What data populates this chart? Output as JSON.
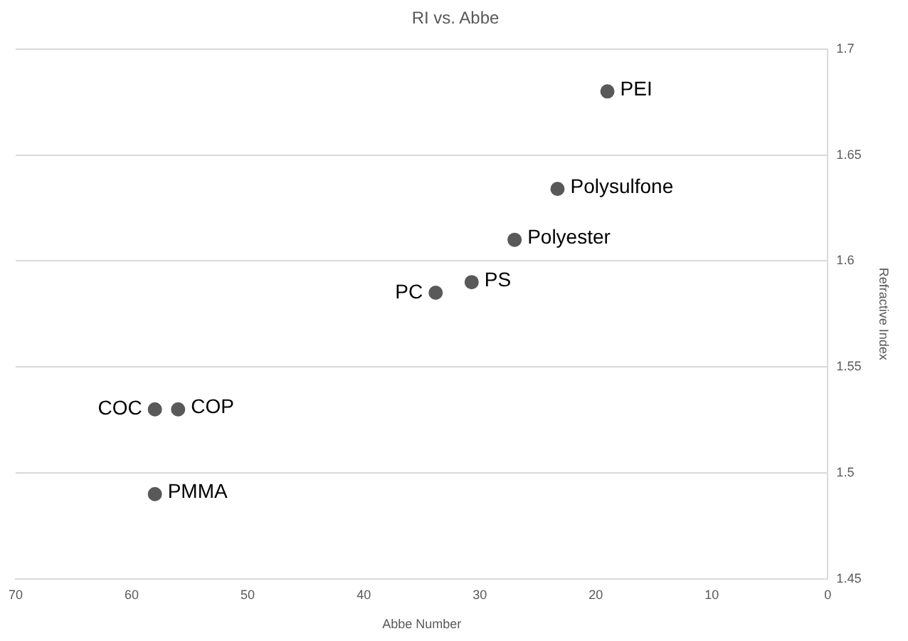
{
  "chart_data": {
    "type": "scatter",
    "title": "RI vs. Abbe",
    "xlabel": "Abbe Number",
    "ylabel": "Refractive Index",
    "series": [
      {
        "color": "#595959",
        "x": [
          19,
          23.3,
          27,
          30.7,
          33.8,
          58,
          56,
          58
        ],
        "values": [
          1.68,
          1.634,
          1.61,
          1.59,
          1.585,
          1.53,
          1.53,
          1.49
        ]
      }
    ],
    "annotations": [
      {
        "text": "PEI",
        "x": 19,
        "y": 1.68
      },
      {
        "text": "Polysulfone",
        "x": 23.3,
        "y": 1.634
      },
      {
        "text": "Polyester",
        "x": 27,
        "y": 1.61
      },
      {
        "text": "PS",
        "x": 30.7,
        "y": 1.59
      },
      {
        "text": "PC",
        "x": 33.8,
        "y": 1.585
      },
      {
        "text": "COC",
        "x": 58,
        "y": 1.53
      },
      {
        "text": "COP",
        "x": 56,
        "y": 1.53
      },
      {
        "text": "PMMA",
        "x": 58,
        "y": 1.49
      }
    ],
    "xlim": [
      70,
      0
    ],
    "xticks": [
      70,
      60,
      50,
      40,
      30,
      20,
      10,
      0
    ],
    "ylim": [
      1.45,
      1.7
    ],
    "yticks": [
      1.45,
      1.5,
      1.55,
      1.6,
      1.65,
      1.7
    ],
    "grid": "y",
    "legend": false,
    "marker": "circle"
  }
}
